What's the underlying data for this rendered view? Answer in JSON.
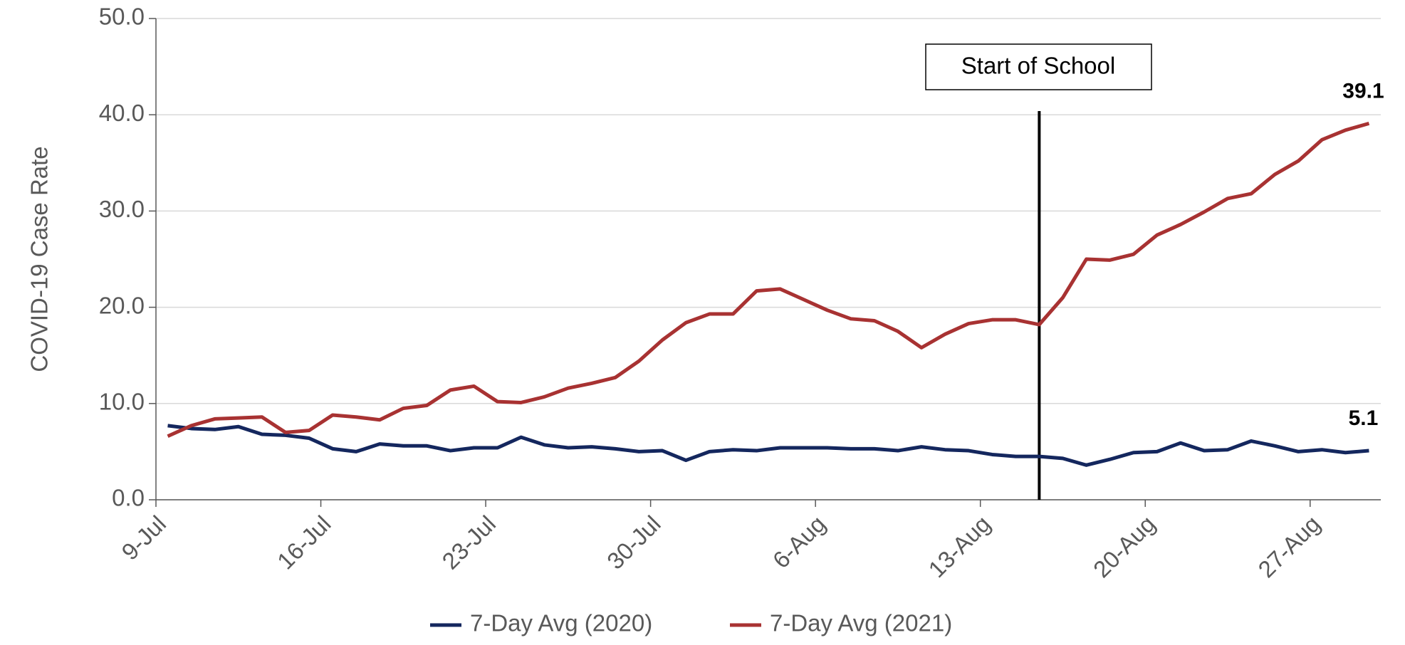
{
  "chart_data": {
    "type": "line",
    "ylabel": "COVID-19 Case Rate",
    "categories": [
      "9-Jul",
      null,
      null,
      null,
      null,
      null,
      null,
      "16-Jul",
      null,
      null,
      null,
      null,
      null,
      null,
      "23-Jul",
      null,
      null,
      null,
      null,
      null,
      null,
      "30-Jul",
      null,
      null,
      null,
      null,
      null,
      null,
      "6-Aug",
      null,
      null,
      null,
      null,
      null,
      null,
      "13-Aug",
      null,
      null,
      null,
      null,
      null,
      null,
      "20-Aug",
      null,
      null,
      null,
      null,
      null,
      null,
      "27-Aug",
      null,
      null
    ],
    "series": [
      {
        "name": "7-Day Avg (2020)",
        "color": "#14275e",
        "values": [
          7.7,
          7.4,
          7.3,
          7.6,
          6.8,
          6.7,
          6.4,
          5.3,
          5.0,
          5.8,
          5.6,
          5.6,
          5.1,
          5.4,
          5.4,
          6.5,
          5.7,
          5.4,
          5.5,
          5.3,
          5.0,
          5.1,
          4.1,
          5.0,
          5.2,
          5.1,
          5.4,
          5.4,
          5.4,
          5.3,
          5.3,
          5.1,
          5.5,
          5.2,
          5.1,
          4.7,
          4.5,
          4.5,
          4.3,
          3.6,
          4.2,
          4.9,
          5.0,
          5.9,
          5.1,
          5.2,
          6.1,
          5.6,
          5.0,
          5.2,
          4.9,
          5.1
        ]
      },
      {
        "name": "7-Day Avg (2021)",
        "color": "#a83232",
        "values": [
          6.6,
          7.7,
          8.4,
          8.5,
          8.6,
          7.0,
          7.2,
          8.8,
          8.6,
          8.3,
          9.5,
          9.8,
          11.4,
          11.8,
          10.2,
          10.1,
          10.7,
          11.6,
          12.1,
          12.7,
          14.4,
          16.6,
          18.4,
          19.3,
          19.3,
          21.7,
          21.9,
          20.8,
          19.7,
          18.8,
          18.6,
          17.5,
          15.8,
          17.2,
          18.3,
          18.7,
          18.7,
          18.2,
          21.0,
          25.0,
          24.9,
          25.5,
          27.5,
          28.6,
          29.9,
          31.3,
          31.8,
          33.8,
          35.2,
          37.4,
          38.4,
          39.1
        ]
      }
    ],
    "ylim": [
      0,
      50
    ],
    "yticks": [
      {
        "value": 0,
        "label": "0.0"
      },
      {
        "value": 10,
        "label": "10.0"
      },
      {
        "value": 20,
        "label": "20.0"
      },
      {
        "value": 30,
        "label": "30.0"
      },
      {
        "value": 40,
        "label": "40.0"
      },
      {
        "value": 50,
        "label": "50.0"
      }
    ],
    "grid": true,
    "legend": "bottom",
    "annotation": "Start of School"
  }
}
